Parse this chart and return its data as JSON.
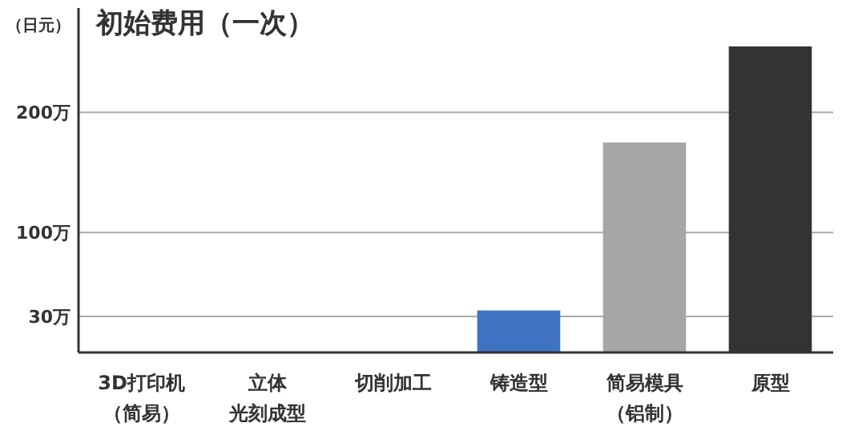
{
  "chart_data": {
    "type": "bar",
    "title": "初始费用（一次）",
    "ylabel": "（日元）",
    "categories": [
      "3D打印机（简易）",
      "立体光刻成型",
      "切削加工",
      "铸造型",
      "简易模具（铝制）",
      "原型"
    ],
    "values": [
      0,
      0,
      0,
      35,
      175,
      255
    ],
    "colors": [
      "#3f72c0",
      "#3f72c0",
      "#3f72c0",
      "#3f72c0",
      "#a6a6a6",
      "#333333"
    ],
    "ylim": [
      0,
      287
    ],
    "yticks": [
      {
        "value": 30,
        "label": "30万"
      },
      {
        "value": 100,
        "label": "100万"
      },
      {
        "value": 200,
        "label": "200万"
      }
    ],
    "grid": "y"
  }
}
